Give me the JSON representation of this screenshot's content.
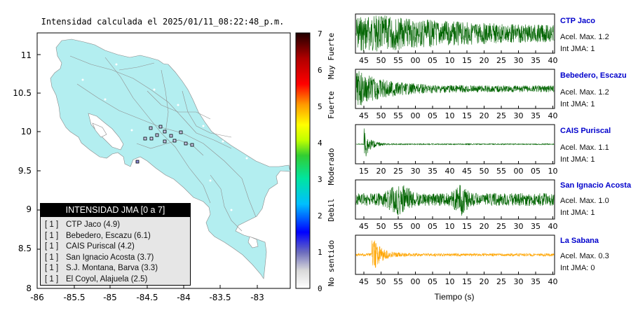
{
  "map": {
    "title": "Intensidad calculada el 2025/01/11_08:22:48_p.m.",
    "x_ticks": [
      "-86",
      "-85.5",
      "-85",
      "-84.5",
      "-84",
      "-83.5",
      "-83"
    ],
    "y_ticks": [
      "11",
      "10.5",
      "10",
      "9.5",
      "9",
      "8.5",
      "8"
    ],
    "land_color": "#b3eef0"
  },
  "colorbar": {
    "ticks": [
      "7",
      "6",
      "5",
      "4",
      "3",
      "2",
      "1",
      "0"
    ],
    "labels": [
      "Muy Fuerte",
      "Fuerte",
      "Moderado",
      "Debil",
      "No sentido"
    ]
  },
  "legend": {
    "title": "INTENSIDAD JMA [0 a 7]",
    "items": [
      {
        "num": "[ 1 ]",
        "label": "CTP Jaco (4.9)"
      },
      {
        "num": "[ 1 ]",
        "label": "Bebedero, Escazu (6.1)"
      },
      {
        "num": "[ 1 ]",
        "label": "CAIS Puriscal (4.2)"
      },
      {
        "num": "[ 1 ]",
        "label": "San Ignacio Acosta (3.7)"
      },
      {
        "num": "[ 1 ]",
        "label": "S.J. Montana, Barva (3.3)"
      },
      {
        "num": "[ 1 ]",
        "label": "El Coyol, Alajuela (2.5)"
      }
    ]
  },
  "stations": [
    {
      "name": "CTP Jaco",
      "accel": "Acel. Max. 1.2",
      "jma": "Int JMA: 1",
      "color": "#006400",
      "ticks": [
        "45",
        "50",
        "55",
        "00",
        "05",
        "10",
        "15",
        "20",
        "25",
        "30",
        "35",
        "40"
      ]
    },
    {
      "name": "Bebedero, Escazu",
      "accel": "Acel. Max. 1.2",
      "jma": "Int JMA: 1",
      "color": "#006400",
      "ticks": [
        "45",
        "50",
        "55",
        "00",
        "05",
        "10",
        "15",
        "20",
        "25",
        "30",
        "35",
        "40"
      ]
    },
    {
      "name": "CAIS Puriscal",
      "accel": "Acel. Max. 1.1",
      "jma": "Int JMA: 1",
      "color": "#006400",
      "ticks": [
        "15",
        "20",
        "25",
        "30",
        "35",
        "40",
        "45",
        "50",
        "55",
        "00",
        "05",
        "10"
      ]
    },
    {
      "name": "San Ignacio Acosta",
      "accel": "Acel. Max. 1.0",
      "jma": "Int JMA: 1",
      "color": "#006400",
      "ticks": [
        "45",
        "50",
        "55",
        "00",
        "05",
        "10",
        "15",
        "20",
        "25",
        "30",
        "35",
        "40"
      ]
    },
    {
      "name": "La Sabana",
      "accel": "Acel. Max. 0.3",
      "jma": "Int JMA: 0",
      "color": "#ffa500",
      "ticks": [
        "45",
        "50",
        "55",
        "00",
        "05",
        "10",
        "15",
        "20",
        "25",
        "30",
        "35",
        "40"
      ]
    }
  ],
  "x_axis_label": "Tiempo (s)"
}
